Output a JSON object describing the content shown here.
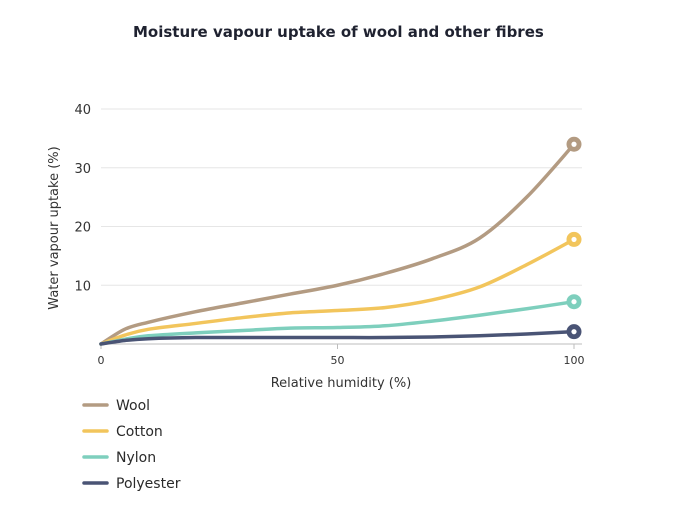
{
  "chart_data": {
    "type": "line",
    "title": "Moisture vapour uptake of wool and other fibres",
    "xlabel": "Relative humidity (%)",
    "ylabel": "Water vapour uptake (%)",
    "xlim": [
      0,
      100
    ],
    "ylim": [
      0,
      40
    ],
    "x_ticks": [
      0,
      50,
      100
    ],
    "y_ticks": [
      10,
      20,
      30,
      40
    ],
    "grid": true,
    "legend_position": "bottom-left",
    "series": [
      {
        "name": "Wool",
        "color": "#b39b82",
        "x": [
          0,
          5,
          10,
          20,
          30,
          40,
          50,
          60,
          70,
          80,
          90,
          100
        ],
        "y": [
          0,
          2.5,
          3.7,
          5.5,
          7,
          8.5,
          10,
          12,
          14.5,
          18,
          25,
          34
        ]
      },
      {
        "name": "Cotton",
        "color": "#f2c55c",
        "x": [
          0,
          5,
          10,
          20,
          30,
          40,
          50,
          60,
          70,
          80,
          90,
          100
        ],
        "y": [
          0,
          1.5,
          2.5,
          3.5,
          4.5,
          5.3,
          5.7,
          6.2,
          7.5,
          9.7,
          13.5,
          17.8
        ]
      },
      {
        "name": "Nylon",
        "color": "#7ecfbd",
        "x": [
          0,
          5,
          10,
          20,
          30,
          40,
          50,
          60,
          70,
          80,
          90,
          100
        ],
        "y": [
          0,
          0.8,
          1.4,
          1.9,
          2.3,
          2.7,
          2.8,
          3.1,
          3.9,
          4.9,
          6,
          7.2
        ]
      },
      {
        "name": "Polyester",
        "color": "#4a5475",
        "x": [
          0,
          5,
          10,
          20,
          30,
          40,
          50,
          60,
          70,
          80,
          90,
          100
        ],
        "y": [
          0,
          0.6,
          0.9,
          1.1,
          1.1,
          1.1,
          1.1,
          1.1,
          1.2,
          1.4,
          1.7,
          2.1
        ]
      }
    ]
  }
}
